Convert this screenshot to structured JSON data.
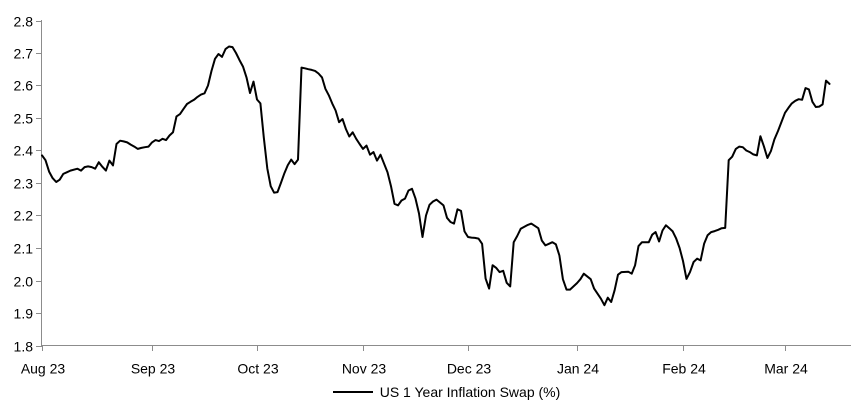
{
  "chart_data": {
    "type": "line",
    "legend": {
      "position": "bottom",
      "entries": [
        "US 1 Year Inflation Swap (%)"
      ]
    },
    "ylim": [
      1.8,
      2.8
    ],
    "y_tick_step": 0.1,
    "y_ticks": [
      "1.8",
      "1.9",
      "2.0",
      "2.1",
      "2.2",
      "2.3",
      "2.4",
      "2.5",
      "2.6",
      "2.7",
      "2.8"
    ],
    "x_ticks": [
      "Aug 23",
      "Sep 23",
      "Oct 23",
      "Nov 23",
      "Dec 23",
      "Jan 24",
      "Feb 24",
      "Mar 24"
    ],
    "grid": false,
    "series": [
      {
        "name": "US 1 Year Inflation Swap (%)",
        "color": "#000000",
        "points": [
          [
            "2023-08-01",
            2.385
          ],
          [
            "2023-08-02",
            2.37
          ],
          [
            "2023-08-03",
            2.335
          ],
          [
            "2023-08-04",
            2.315
          ],
          [
            "2023-08-05",
            2.303
          ],
          [
            "2023-08-06",
            2.31
          ],
          [
            "2023-08-07",
            2.328
          ],
          [
            "2023-08-08",
            2.333
          ],
          [
            "2023-08-09",
            2.338
          ],
          [
            "2023-08-11",
            2.344
          ],
          [
            "2023-08-12",
            2.338
          ],
          [
            "2023-08-13",
            2.349
          ],
          [
            "2023-08-14",
            2.351
          ],
          [
            "2023-08-15",
            2.349
          ],
          [
            "2023-08-16",
            2.344
          ],
          [
            "2023-08-17",
            2.364
          ],
          [
            "2023-08-18",
            2.35
          ],
          [
            "2023-08-19",
            2.338
          ],
          [
            "2023-08-20",
            2.369
          ],
          [
            "2023-08-21",
            2.354
          ],
          [
            "2023-08-22",
            2.42
          ],
          [
            "2023-08-23",
            2.43
          ],
          [
            "2023-08-24",
            2.428
          ],
          [
            "2023-08-25",
            2.425
          ],
          [
            "2023-08-26",
            2.418
          ],
          [
            "2023-08-27",
            2.412
          ],
          [
            "2023-08-28",
            2.405
          ],
          [
            "2023-08-29",
            2.408
          ],
          [
            "2023-08-30",
            2.41
          ],
          [
            "2023-08-31",
            2.412
          ],
          [
            "2023-09-01",
            2.425
          ],
          [
            "2023-09-02",
            2.432
          ],
          [
            "2023-09-03",
            2.429
          ],
          [
            "2023-09-04",
            2.436
          ],
          [
            "2023-09-05",
            2.432
          ],
          [
            "2023-09-06",
            2.446
          ],
          [
            "2023-09-07",
            2.456
          ],
          [
            "2023-09-08",
            2.505
          ],
          [
            "2023-09-09",
            2.512
          ],
          [
            "2023-09-10",
            2.528
          ],
          [
            "2023-09-11",
            2.543
          ],
          [
            "2023-09-12",
            2.55
          ],
          [
            "2023-09-13",
            2.556
          ],
          [
            "2023-09-14",
            2.565
          ],
          [
            "2023-09-15",
            2.572
          ],
          [
            "2023-09-16",
            2.576
          ],
          [
            "2023-09-17",
            2.6
          ],
          [
            "2023-09-18",
            2.645
          ],
          [
            "2023-09-19",
            2.682
          ],
          [
            "2023-09-20",
            2.697
          ],
          [
            "2023-09-21",
            2.688
          ],
          [
            "2023-09-22",
            2.712
          ],
          [
            "2023-09-23",
            2.72
          ],
          [
            "2023-09-24",
            2.718
          ],
          [
            "2023-09-25",
            2.7
          ],
          [
            "2023-09-26",
            2.678
          ],
          [
            "2023-09-27",
            2.658
          ],
          [
            "2023-09-28",
            2.625
          ],
          [
            "2023-09-29",
            2.577
          ],
          [
            "2023-09-30",
            2.612
          ],
          [
            "2023-10-01",
            2.557
          ],
          [
            "2023-10-02",
            2.545
          ],
          [
            "2023-10-03",
            2.44
          ],
          [
            "2023-10-04",
            2.345
          ],
          [
            "2023-10-05",
            2.29
          ],
          [
            "2023-10-06",
            2.27
          ],
          [
            "2023-10-07",
            2.272
          ],
          [
            "2023-10-08",
            2.3
          ],
          [
            "2023-10-09",
            2.33
          ],
          [
            "2023-10-10",
            2.355
          ],
          [
            "2023-10-11",
            2.372
          ],
          [
            "2023-10-12",
            2.358
          ],
          [
            "2023-10-13",
            2.372
          ],
          [
            "2023-10-14",
            2.655
          ],
          [
            "2023-10-15",
            2.653
          ],
          [
            "2023-10-16",
            2.65
          ],
          [
            "2023-10-17",
            2.648
          ],
          [
            "2023-10-18",
            2.645
          ],
          [
            "2023-10-19",
            2.637
          ],
          [
            "2023-10-20",
            2.625
          ],
          [
            "2023-10-21",
            2.59
          ],
          [
            "2023-10-22",
            2.57
          ],
          [
            "2023-10-23",
            2.545
          ],
          [
            "2023-10-24",
            2.523
          ],
          [
            "2023-10-25",
            2.487
          ],
          [
            "2023-10-26",
            2.497
          ],
          [
            "2023-10-27",
            2.466
          ],
          [
            "2023-10-28",
            2.443
          ],
          [
            "2023-10-29",
            2.456
          ],
          [
            "2023-10-30",
            2.436
          ],
          [
            "2023-10-31",
            2.42
          ],
          [
            "2023-11-01",
            2.405
          ],
          [
            "2023-11-02",
            2.415
          ],
          [
            "2023-11-03",
            2.387
          ],
          [
            "2023-11-04",
            2.395
          ],
          [
            "2023-11-05",
            2.369
          ],
          [
            "2023-11-06",
            2.387
          ],
          [
            "2023-11-08",
            2.333
          ],
          [
            "2023-11-09",
            2.29
          ],
          [
            "2023-11-10",
            2.236
          ],
          [
            "2023-11-11",
            2.231
          ],
          [
            "2023-11-12",
            2.246
          ],
          [
            "2023-11-13",
            2.252
          ],
          [
            "2023-11-14",
            2.277
          ],
          [
            "2023-11-15",
            2.282
          ],
          [
            "2023-11-16",
            2.252
          ],
          [
            "2023-11-17",
            2.206
          ],
          [
            "2023-11-18",
            2.134
          ],
          [
            "2023-11-19",
            2.2
          ],
          [
            "2023-11-20",
            2.233
          ],
          [
            "2023-11-21",
            2.243
          ],
          [
            "2023-11-22",
            2.249
          ],
          [
            "2023-11-24",
            2.231
          ],
          [
            "2023-11-25",
            2.193
          ],
          [
            "2023-11-26",
            2.18
          ],
          [
            "2023-11-27",
            2.175
          ],
          [
            "2023-11-28",
            2.219
          ],
          [
            "2023-11-29",
            2.214
          ],
          [
            "2023-11-30",
            2.151
          ],
          [
            "2023-12-01",
            2.134
          ],
          [
            "2023-12-02",
            2.132
          ],
          [
            "2023-12-03",
            2.131
          ],
          [
            "2023-12-04",
            2.129
          ],
          [
            "2023-12-05",
            2.113
          ],
          [
            "2023-12-06",
            2.006
          ],
          [
            "2023-12-07",
            1.975
          ],
          [
            "2023-12-08",
            2.047
          ],
          [
            "2023-12-09",
            2.039
          ],
          [
            "2023-12-10",
            2.026
          ],
          [
            "2023-12-11",
            2.03
          ],
          [
            "2023-12-12",
            1.993
          ],
          [
            "2023-12-13",
            1.982
          ],
          [
            "2023-12-14",
            2.118
          ],
          [
            "2023-12-15",
            2.137
          ],
          [
            "2023-12-16",
            2.159
          ],
          [
            "2023-12-18",
            2.171
          ],
          [
            "2023-12-19",
            2.175
          ],
          [
            "2023-12-21",
            2.161
          ],
          [
            "2023-12-22",
            2.123
          ],
          [
            "2023-12-23",
            2.108
          ],
          [
            "2023-12-24",
            2.113
          ],
          [
            "2023-12-25",
            2.118
          ],
          [
            "2023-12-26",
            2.111
          ],
          [
            "2023-12-27",
            2.077
          ],
          [
            "2023-12-28",
            2.004
          ],
          [
            "2023-12-29",
            1.972
          ],
          [
            "2023-12-30",
            1.972
          ],
          [
            "2023-12-31",
            1.982
          ],
          [
            "2024-01-01",
            1.992
          ],
          [
            "2024-01-02",
            2.004
          ],
          [
            "2024-01-03",
            2.021
          ],
          [
            "2024-01-05",
            2.004
          ],
          [
            "2024-01-06",
            1.975
          ],
          [
            "2024-01-08",
            1.944
          ],
          [
            "2024-01-09",
            1.924
          ],
          [
            "2024-01-10",
            1.947
          ],
          [
            "2024-01-11",
            1.934
          ],
          [
            "2024-01-12",
            1.97
          ],
          [
            "2024-01-13",
            2.018
          ],
          [
            "2024-01-14",
            2.026
          ],
          [
            "2024-01-16",
            2.027
          ],
          [
            "2024-01-17",
            2.021
          ],
          [
            "2024-01-18",
            2.047
          ],
          [
            "2024-01-19",
            2.106
          ],
          [
            "2024-01-20",
            2.118
          ],
          [
            "2024-01-22",
            2.118
          ],
          [
            "2024-01-23",
            2.141
          ],
          [
            "2024-01-24",
            2.149
          ],
          [
            "2024-01-25",
            2.12
          ],
          [
            "2024-01-26",
            2.154
          ],
          [
            "2024-01-27",
            2.17
          ],
          [
            "2024-01-28",
            2.161
          ],
          [
            "2024-01-29",
            2.151
          ],
          [
            "2024-01-30",
            2.129
          ],
          [
            "2024-01-31",
            2.1
          ],
          [
            "2024-02-01",
            2.06
          ],
          [
            "2024-02-02",
            2.005
          ],
          [
            "2024-02-03",
            2.026
          ],
          [
            "2024-02-04",
            2.057
          ],
          [
            "2024-02-05",
            2.067
          ],
          [
            "2024-02-06",
            2.062
          ],
          [
            "2024-02-07",
            2.113
          ],
          [
            "2024-02-08",
            2.139
          ],
          [
            "2024-02-09",
            2.149
          ],
          [
            "2024-02-10",
            2.152
          ],
          [
            "2024-02-11",
            2.156
          ],
          [
            "2024-02-12",
            2.161
          ],
          [
            "2024-02-13",
            2.162
          ],
          [
            "2024-02-14",
            2.37
          ],
          [
            "2024-02-15",
            2.381
          ],
          [
            "2024-02-16",
            2.405
          ],
          [
            "2024-02-17",
            2.412
          ],
          [
            "2024-02-18",
            2.41
          ],
          [
            "2024-02-19",
            2.4
          ],
          [
            "2024-02-20",
            2.395
          ],
          [
            "2024-02-21",
            2.388
          ],
          [
            "2024-02-22",
            2.385
          ],
          [
            "2024-02-23",
            2.444
          ],
          [
            "2024-02-24",
            2.413
          ],
          [
            "2024-02-25",
            2.377
          ],
          [
            "2024-02-26",
            2.398
          ],
          [
            "2024-02-27",
            2.434
          ],
          [
            "2024-02-28",
            2.46
          ],
          [
            "2024-02-29",
            2.488
          ],
          [
            "2024-03-01",
            2.516
          ],
          [
            "2024-03-02",
            2.531
          ],
          [
            "2024-03-03",
            2.545
          ],
          [
            "2024-03-04",
            2.553
          ],
          [
            "2024-03-05",
            2.558
          ],
          [
            "2024-03-06",
            2.556
          ],
          [
            "2024-03-07",
            2.592
          ],
          [
            "2024-03-08",
            2.588
          ],
          [
            "2024-03-09",
            2.55
          ],
          [
            "2024-03-10",
            2.534
          ],
          [
            "2024-03-11",
            2.535
          ],
          [
            "2024-03-12",
            2.542
          ],
          [
            "2024-03-13",
            2.615
          ],
          [
            "2024-03-14",
            2.605
          ]
        ]
      }
    ]
  },
  "styles": {
    "axis_color": "#8c8c8c",
    "text_color": "#000000",
    "line_color": "#000000",
    "background": "#ffffff",
    "line_width": 2
  }
}
